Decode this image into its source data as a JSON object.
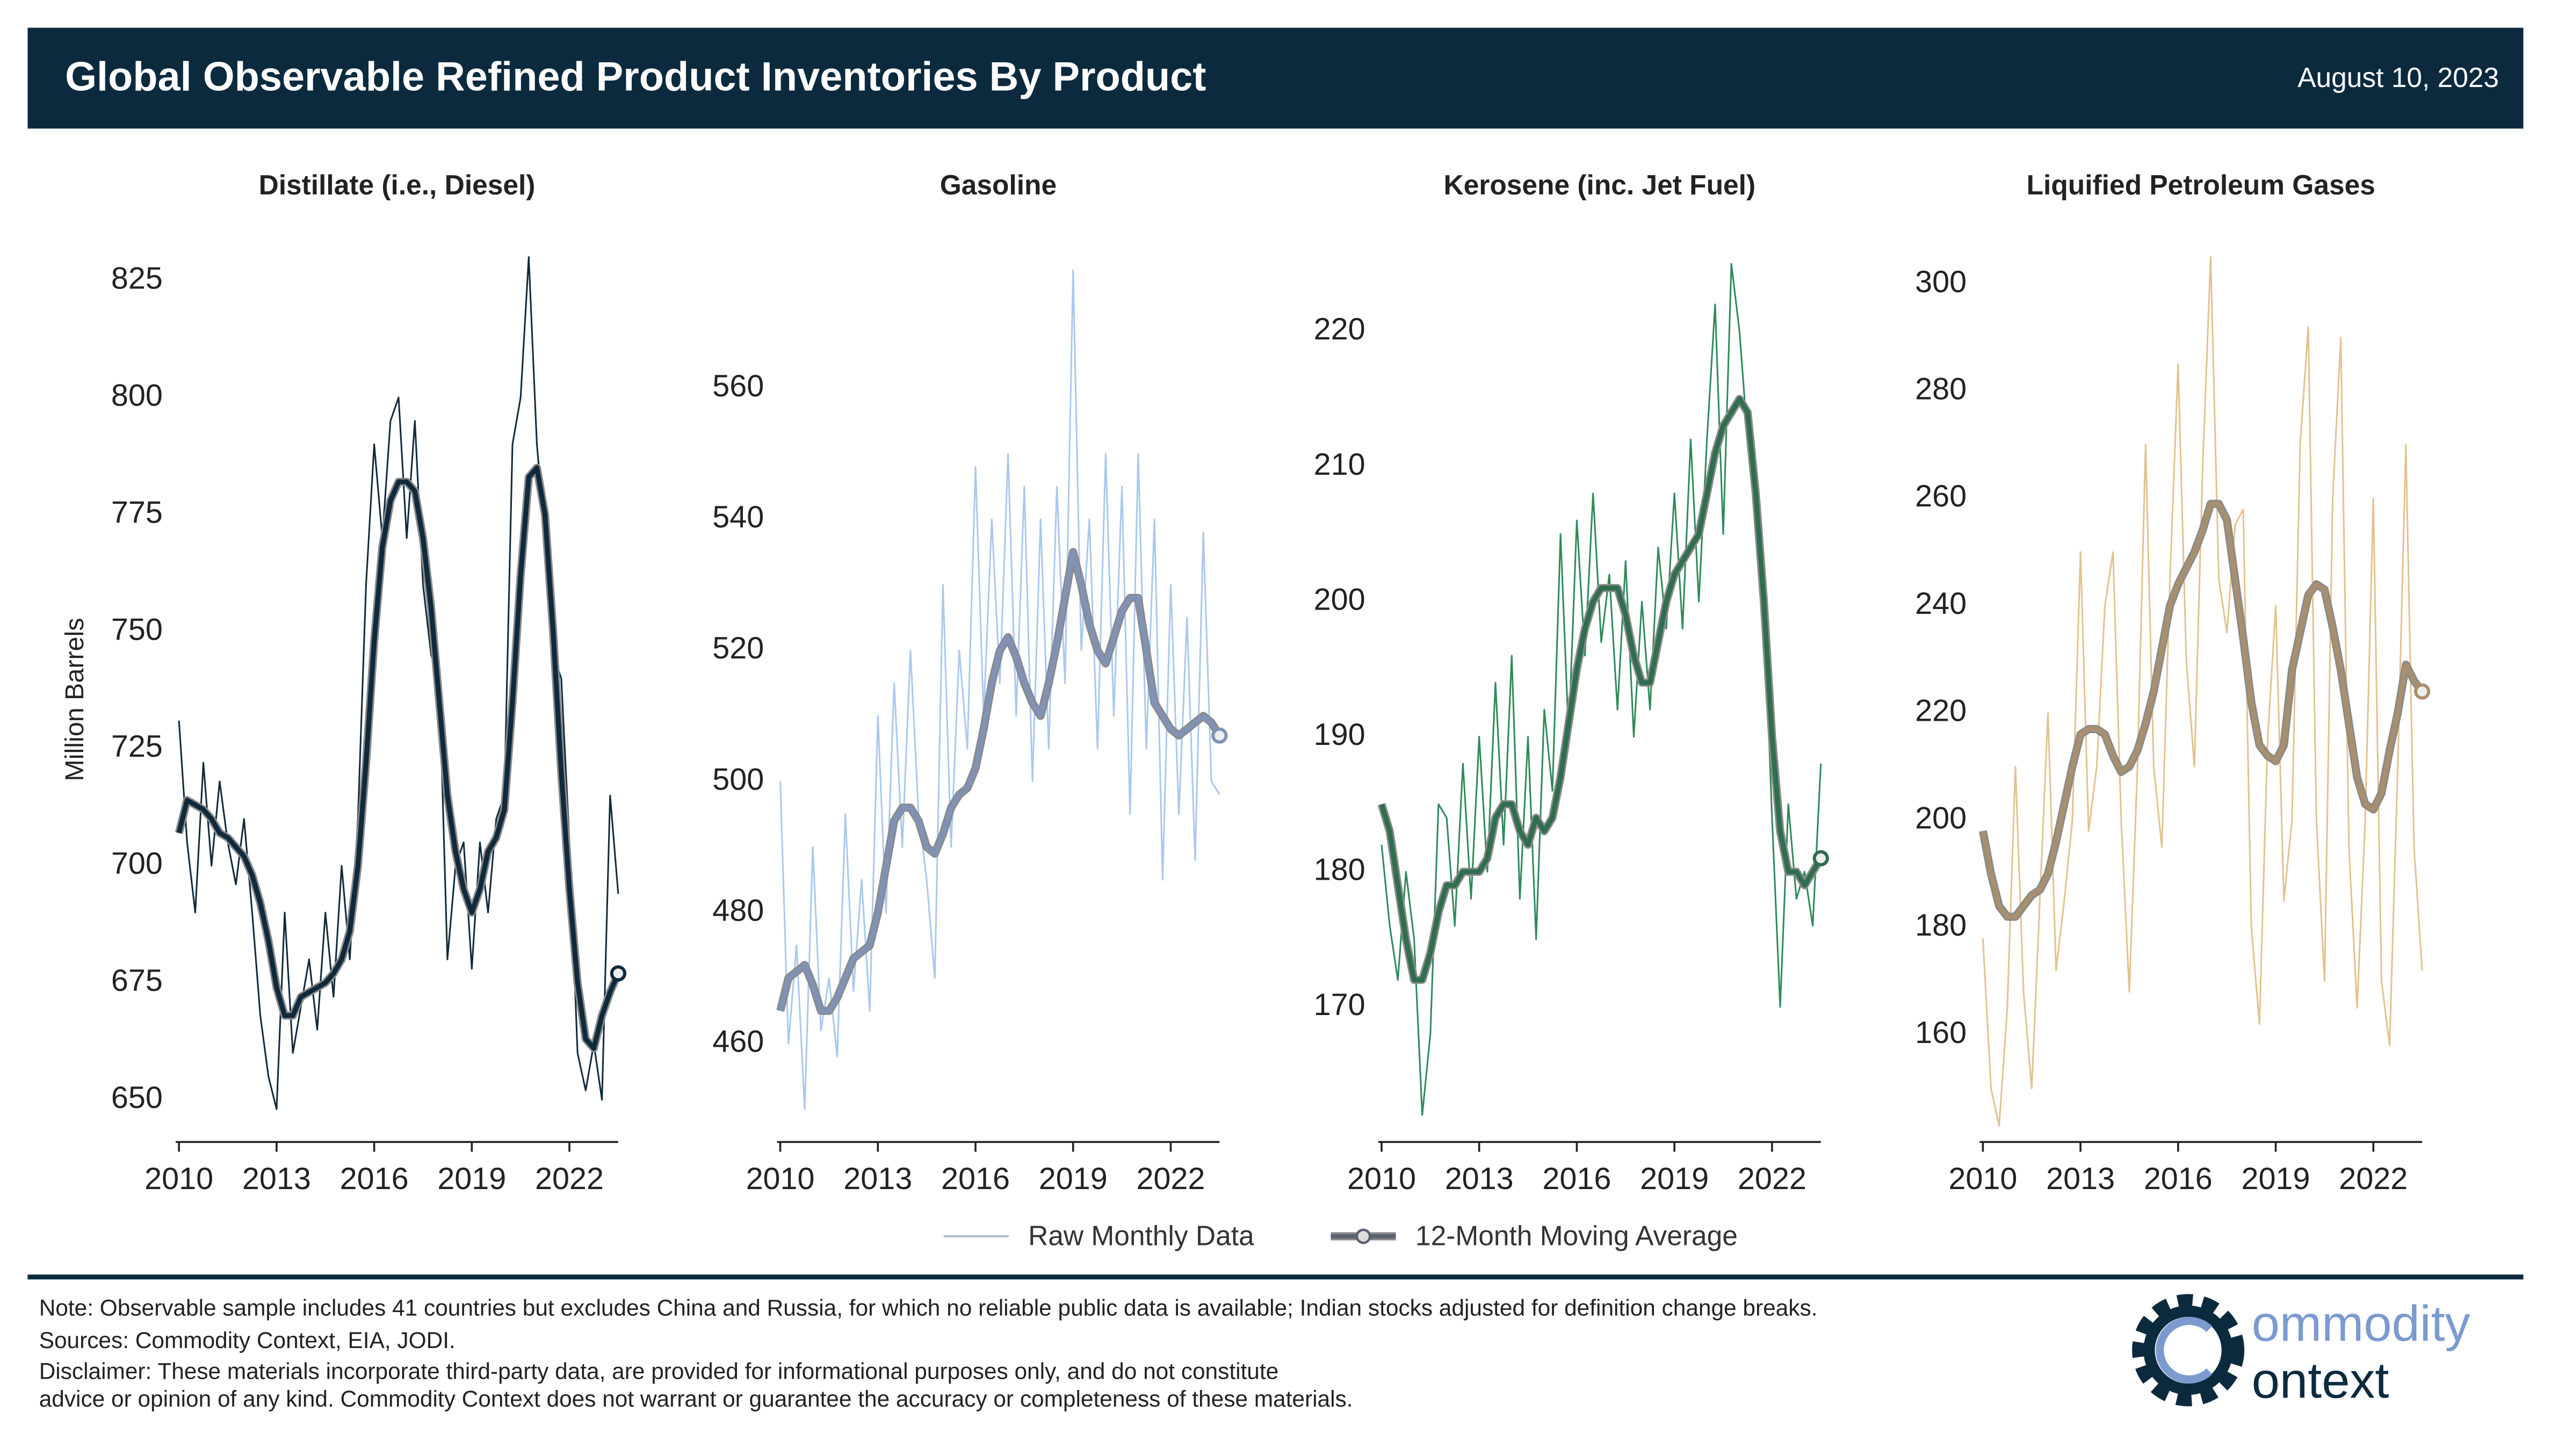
{
  "header": {
    "title": "Global Observable Refined Product Inventories By Product",
    "date": "August 10, 2023"
  },
  "footer": {
    "notes": [
      "Note: Observable sample includes 41 countries but excludes China and Russia, for which no reliable public data is available; Indian stocks adjusted for definition change breaks.",
      "Sources: Commodity Context, EIA, JODI.",
      "Disclaimer: These materials incorporate third-party data, are provided for informational purposes only, and do not constitute",
      "advice or opinion of any kind. Commodity Context does not warrant or guarantee the accuracy or completeness of these materials."
    ]
  },
  "logo": {
    "line1": "ommodity",
    "line2": "ontext"
  },
  "chart_data": [
    {
      "type": "line",
      "title": "Distillate (i.e., Diesel)",
      "ylabel": "Million Barrels",
      "x": [
        2010,
        2010.25,
        2010.5,
        2010.75,
        2011,
        2011.25,
        2011.5,
        2011.75,
        2012,
        2012.25,
        2012.5,
        2012.75,
        2013,
        2013.25,
        2013.5,
        2013.75,
        2014,
        2014.25,
        2014.5,
        2014.75,
        2015,
        2015.25,
        2015.5,
        2015.75,
        2016,
        2016.25,
        2016.5,
        2016.75,
        2017,
        2017.25,
        2017.5,
        2017.75,
        2018,
        2018.25,
        2018.5,
        2018.75,
        2019,
        2019.25,
        2019.5,
        2019.75,
        2020,
        2020.25,
        2020.5,
        2020.75,
        2021,
        2021.25,
        2021.5,
        2021.75,
        2022,
        2022.25,
        2022.5,
        2022.75,
        2023,
        2023.25,
        2023.5
      ],
      "xlim": [
        2009.9,
        2023.5
      ],
      "xticks": [
        2010,
        2013,
        2016,
        2019,
        2022
      ],
      "ylim": [
        641,
        830
      ],
      "yticks": [
        650,
        675,
        700,
        725,
        750,
        775,
        800,
        825
      ],
      "series": [
        {
          "name": "Raw Monthly Data",
          "color": "#0f2a3c",
          "values": [
            731,
            705,
            690,
            722,
            700,
            718,
            705,
            696,
            710,
            690,
            668,
            655,
            648,
            690,
            660,
            670,
            680,
            665,
            690,
            672,
            700,
            680,
            710,
            760,
            790,
            770,
            795,
            800,
            770,
            795,
            760,
            745,
            740,
            680,
            700,
            705,
            678,
            705,
            690,
            710,
            715,
            790,
            800,
            830,
            790,
            770,
            745,
            740,
            705,
            660,
            652,
            662,
            650,
            715,
            694
          ]
        },
        {
          "name": "12-Month Moving Average",
          "color": "#0f2a3c",
          "values": [
            707,
            714,
            713,
            712,
            710,
            707,
            706,
            704,
            702,
            698,
            692,
            684,
            674,
            668,
            668,
            672,
            673,
            674,
            675,
            677,
            680,
            686,
            700,
            722,
            748,
            768,
            778,
            782,
            782,
            780,
            770,
            755,
            735,
            715,
            703,
            695,
            690,
            695,
            703,
            706,
            712,
            735,
            762,
            783,
            785,
            775,
            750,
            720,
            695,
            675,
            663,
            661,
            668,
            673,
            677
          ]
        }
      ]
    },
    {
      "type": "line",
      "title": "Gasoline",
      "x": [
        2010,
        2010.25,
        2010.5,
        2010.75,
        2011,
        2011.25,
        2011.5,
        2011.75,
        2012,
        2012.25,
        2012.5,
        2012.75,
        2013,
        2013.25,
        2013.5,
        2013.75,
        2014,
        2014.25,
        2014.5,
        2014.75,
        2015,
        2015.25,
        2015.5,
        2015.75,
        2016,
        2016.25,
        2016.5,
        2016.75,
        2017,
        2017.25,
        2017.5,
        2017.75,
        2018,
        2018.25,
        2018.5,
        2018.75,
        2019,
        2019.25,
        2019.5,
        2019.75,
        2020,
        2020.25,
        2020.5,
        2020.75,
        2021,
        2021.25,
        2021.5,
        2021.75,
        2022,
        2022.25,
        2022.5,
        2022.75,
        2023,
        2023.25,
        2023.5
      ],
      "xlim": [
        2009.9,
        2023.5
      ],
      "xticks": [
        2010,
        2013,
        2016,
        2019,
        2022
      ],
      "ylim": [
        445,
        580
      ],
      "yticks": [
        460,
        480,
        500,
        520,
        540,
        560
      ],
      "series": [
        {
          "name": "Raw Monthly Data",
          "color": "#aac8ee",
          "values": [
            500,
            460,
            475,
            450,
            490,
            462,
            470,
            458,
            495,
            468,
            485,
            465,
            510,
            480,
            515,
            490,
            520,
            495,
            485,
            470,
            530,
            490,
            520,
            505,
            548,
            510,
            540,
            515,
            550,
            510,
            545,
            500,
            540,
            505,
            545,
            515,
            578,
            520,
            540,
            505,
            550,
            510,
            545,
            495,
            550,
            505,
            540,
            485,
            530,
            495,
            525,
            488,
            538,
            500,
            498
          ]
        },
        {
          "name": "12-Month Moving Average",
          "color": "#8093b6",
          "values": [
            465,
            470,
            471,
            472,
            469,
            465,
            465,
            467,
            470,
            473,
            474,
            475,
            480,
            487,
            494,
            496,
            496,
            494,
            490,
            489,
            492,
            496,
            498,
            499,
            502,
            508,
            515,
            520,
            522,
            519,
            515,
            512,
            510,
            515,
            521,
            528,
            535,
            530,
            524,
            520,
            518,
            522,
            526,
            528,
            528,
            520,
            512,
            510,
            508,
            507,
            508,
            509,
            510,
            509,
            507
          ]
        }
      ]
    },
    {
      "type": "line",
      "title": "Kerosene (inc. Jet Fuel)",
      "x": [
        2010,
        2010.25,
        2010.5,
        2010.75,
        2011,
        2011.25,
        2011.5,
        2011.75,
        2012,
        2012.25,
        2012.5,
        2012.75,
        2013,
        2013.25,
        2013.5,
        2013.75,
        2014,
        2014.25,
        2014.5,
        2014.75,
        2015,
        2015.25,
        2015.5,
        2015.75,
        2016,
        2016.25,
        2016.5,
        2016.75,
        2017,
        2017.25,
        2017.5,
        2017.75,
        2018,
        2018.25,
        2018.5,
        2018.75,
        2019,
        2019.25,
        2019.5,
        2019.75,
        2020,
        2020.25,
        2020.5,
        2020.75,
        2021,
        2021.25,
        2021.5,
        2021.75,
        2022,
        2022.25,
        2022.5,
        2022.75,
        2023,
        2023.25,
        2023.5
      ],
      "xlim": [
        2009.9,
        2023.5
      ],
      "xticks": [
        2010,
        2013,
        2016,
        2019,
        2022
      ],
      "ylim": [
        160,
        225.5
      ],
      "yticks": [
        170,
        180,
        190,
        200,
        210,
        220
      ],
      "series": [
        {
          "name": "Raw Monthly Data",
          "color": "#2e8a5a",
          "values": [
            182,
            176,
            172,
            180,
            175,
            162,
            168,
            185,
            184,
            176,
            188,
            178,
            190,
            180,
            194,
            182,
            196,
            178,
            190,
            175,
            192,
            186,
            205,
            190,
            206,
            196,
            208,
            197,
            202,
            192,
            203,
            190,
            200,
            192,
            204,
            198,
            208,
            198,
            212,
            200,
            212,
            222,
            205,
            225,
            220,
            212,
            210,
            200,
            184,
            170,
            185,
            178,
            180,
            176,
            188
          ]
        },
        {
          "name": "12-Month Moving Average",
          "color": "#2f6e4e",
          "values": [
            185,
            183,
            179,
            175,
            172,
            172,
            174,
            177,
            179,
            179,
            180,
            180,
            180,
            181,
            184,
            185,
            185,
            183,
            182,
            184,
            183,
            184,
            187,
            191,
            195,
            198,
            200,
            201,
            201,
            201,
            199,
            196,
            194,
            194,
            197,
            200,
            202,
            203,
            204,
            205,
            208,
            211,
            213,
            214,
            215,
            214,
            208,
            200,
            190,
            183,
            180,
            180,
            179,
            180,
            181
          ]
        }
      ]
    },
    {
      "type": "line",
      "title": "Liquified Petroleum Gases",
      "x": [
        2010,
        2010.25,
        2010.5,
        2010.75,
        2011,
        2011.25,
        2011.5,
        2011.75,
        2012,
        2012.25,
        2012.5,
        2012.75,
        2013,
        2013.25,
        2013.5,
        2013.75,
        2014,
        2014.25,
        2014.5,
        2014.75,
        2015,
        2015.25,
        2015.5,
        2015.75,
        2016,
        2016.25,
        2016.5,
        2016.75,
        2017,
        2017.25,
        2017.5,
        2017.75,
        2018,
        2018.25,
        2018.5,
        2018.75,
        2019,
        2019.25,
        2019.5,
        2019.75,
        2020,
        2020.25,
        2020.5,
        2020.75,
        2021,
        2021.25,
        2021.5,
        2021.75,
        2022,
        2022.25,
        2022.5,
        2022.75,
        2023,
        2023.25,
        2023.5
      ],
      "xlim": [
        2009.9,
        2023.5
      ],
      "xticks": [
        2010,
        2013,
        2016,
        2019,
        2022
      ],
      "ylim": [
        140,
        305
      ],
      "yticks": [
        160,
        180,
        200,
        220,
        240,
        260,
        280,
        300
      ],
      "series": [
        {
          "name": "Raw Monthly Data",
          "color": "#e3c28e",
          "values": [
            178,
            150,
            143,
            165,
            210,
            168,
            150,
            185,
            220,
            172,
            185,
            200,
            250,
            198,
            210,
            240,
            250,
            200,
            168,
            210,
            270,
            210,
            195,
            245,
            285,
            230,
            210,
            265,
            305,
            245,
            235,
            255,
            258,
            180,
            162,
            215,
            240,
            185,
            200,
            270,
            292,
            200,
            170,
            260,
            290,
            195,
            165,
            200,
            260,
            170,
            158,
            210,
            270,
            195,
            172
          ]
        },
        {
          "name": "12-Month Moving Average",
          "color": "#a8906e",
          "values": [
            198,
            190,
            184,
            182,
            182,
            184,
            186,
            187,
            190,
            196,
            203,
            210,
            216,
            217,
            217,
            216,
            212,
            209,
            210,
            213,
            218,
            224,
            232,
            240,
            244,
            247,
            250,
            254,
            259,
            259,
            256,
            245,
            234,
            222,
            214,
            212,
            211,
            214,
            228,
            235,
            242,
            244,
            243,
            236,
            228,
            218,
            208,
            203,
            202,
            205,
            213,
            220,
            229,
            226,
            224
          ]
        }
      ]
    }
  ]
}
